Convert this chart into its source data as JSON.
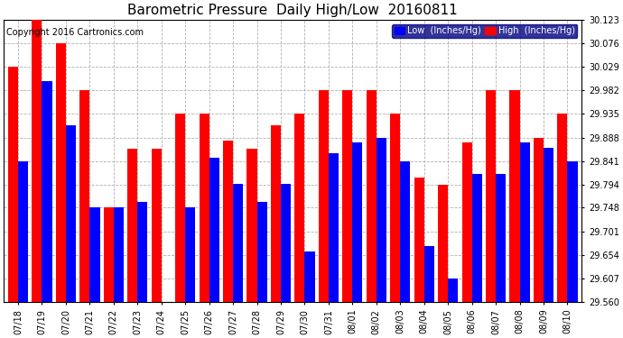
{
  "title": "Barometric Pressure  Daily High/Low  20160811",
  "copyright": "Copyright 2016 Cartronics.com",
  "legend_low": "Low  (Inches/Hg)",
  "legend_high": "High  (Inches/Hg)",
  "color_low": "#0000ff",
  "color_high": "#ff0000",
  "background_color": "#ffffff",
  "grid_color": "#b0b0b0",
  "ylim": [
    29.56,
    30.123
  ],
  "yticks": [
    29.56,
    29.607,
    29.654,
    29.701,
    29.748,
    29.794,
    29.841,
    29.888,
    29.935,
    29.982,
    30.029,
    30.076,
    30.123
  ],
  "dates": [
    "07/18",
    "07/19",
    "07/20",
    "07/21",
    "07/22",
    "07/23",
    "07/24",
    "07/25",
    "07/26",
    "07/27",
    "07/28",
    "07/29",
    "07/30",
    "07/31",
    "08/01",
    "08/02",
    "08/03",
    "08/04",
    "08/05",
    "08/06",
    "08/07",
    "08/08",
    "08/09",
    "08/10"
  ],
  "lows": [
    29.841,
    30.0,
    29.912,
    29.748,
    29.748,
    29.76,
    29.56,
    29.748,
    29.848,
    29.795,
    29.76,
    29.795,
    29.66,
    29.856,
    29.878,
    29.888,
    29.841,
    29.672,
    29.607,
    29.815,
    29.815,
    29.878,
    29.868,
    29.841
  ],
  "highs": [
    30.029,
    30.123,
    30.076,
    29.982,
    29.748,
    29.865,
    29.865,
    29.935,
    29.935,
    29.882,
    29.865,
    29.912,
    29.935,
    29.982,
    29.982,
    29.982,
    29.935,
    29.808,
    29.794,
    29.878,
    29.982,
    29.982,
    29.888,
    29.935
  ],
  "title_fontsize": 11,
  "tick_fontsize": 7,
  "copyright_fontsize": 7
}
